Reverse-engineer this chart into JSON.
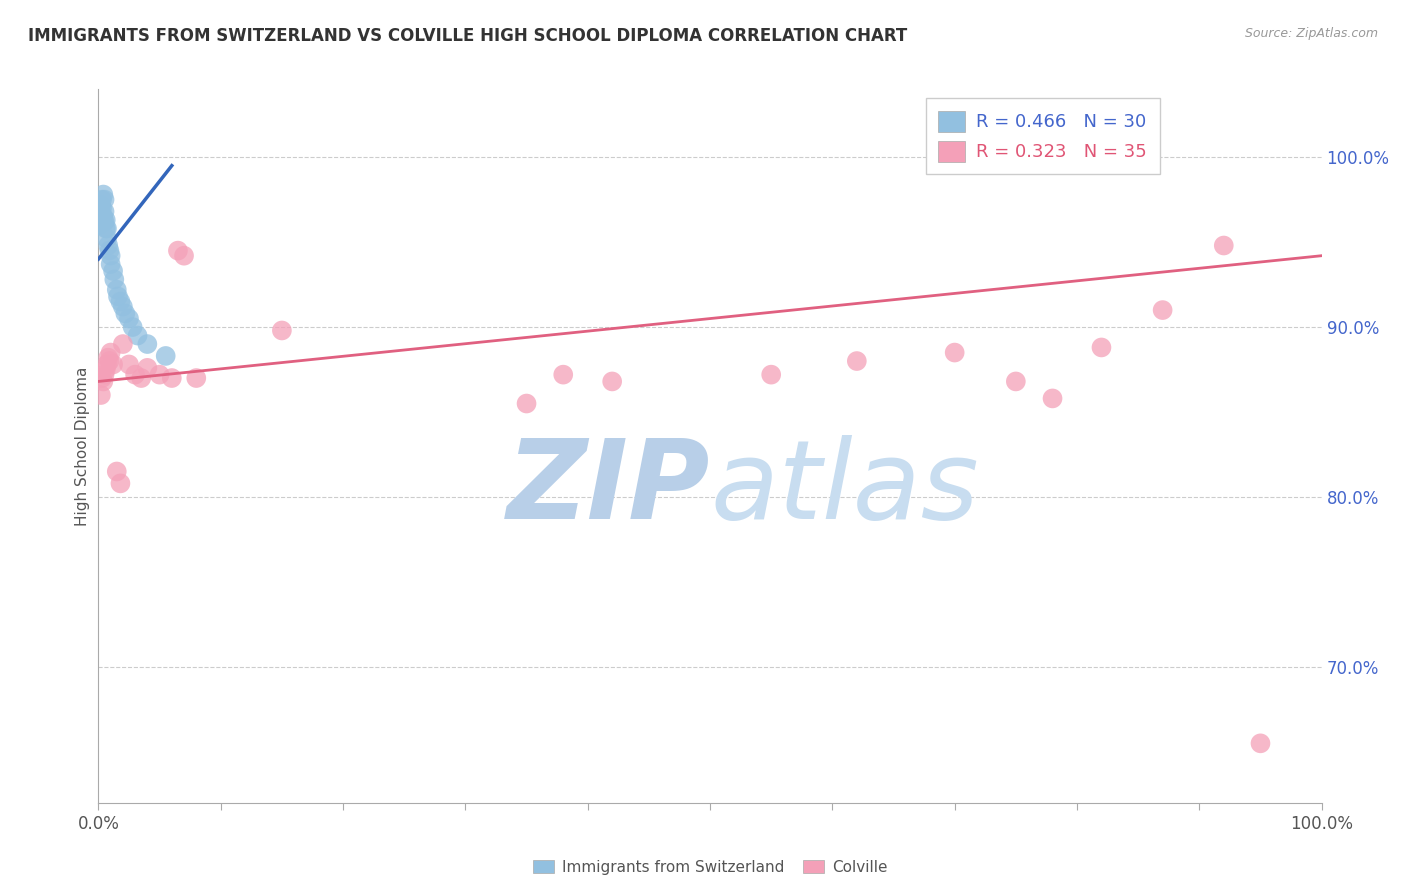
{
  "title": "IMMIGRANTS FROM SWITZERLAND VS COLVILLE HIGH SCHOOL DIPLOMA CORRELATION CHART",
  "source": "Source: ZipAtlas.com",
  "ylabel": "High School Diploma",
  "ytick_labels": [
    "100.0%",
    "90.0%",
    "80.0%",
    "70.0%"
  ],
  "ytick_values": [
    1.0,
    0.9,
    0.8,
    0.7
  ],
  "legend_blue_r": "R = 0.466",
  "legend_blue_n": "N = 30",
  "legend_pink_r": "R = 0.323",
  "legend_pink_n": "N = 35",
  "blue_color": "#92c0e0",
  "pink_color": "#f4a0b8",
  "blue_line_color": "#3366bb",
  "pink_line_color": "#e06080",
  "watermark_zip_color": "#b8cfe8",
  "watermark_atlas_color": "#c8ddf0",
  "background_color": "#ffffff",
  "blue_scatter_x": [
    0.001,
    0.002,
    0.002,
    0.003,
    0.003,
    0.004,
    0.004,
    0.005,
    0.005,
    0.005,
    0.006,
    0.006,
    0.007,
    0.007,
    0.008,
    0.009,
    0.01,
    0.01,
    0.012,
    0.013,
    0.015,
    0.016,
    0.018,
    0.02,
    0.022,
    0.025,
    0.028,
    0.032,
    0.04,
    0.055
  ],
  "blue_scatter_y": [
    0.96,
    0.972,
    0.968,
    0.975,
    0.97,
    0.978,
    0.965,
    0.975,
    0.968,
    0.962,
    0.963,
    0.958,
    0.958,
    0.952,
    0.948,
    0.945,
    0.942,
    0.937,
    0.933,
    0.928,
    0.922,
    0.918,
    0.915,
    0.912,
    0.908,
    0.905,
    0.9,
    0.895,
    0.89,
    0.883
  ],
  "pink_scatter_x": [
    0.002,
    0.003,
    0.004,
    0.005,
    0.006,
    0.007,
    0.008,
    0.009,
    0.01,
    0.012,
    0.015,
    0.018,
    0.02,
    0.025,
    0.03,
    0.035,
    0.04,
    0.05,
    0.06,
    0.065,
    0.07,
    0.08,
    0.15,
    0.35,
    0.38,
    0.42,
    0.55,
    0.62,
    0.7,
    0.75,
    0.78,
    0.82,
    0.87,
    0.92,
    0.95
  ],
  "pink_scatter_y": [
    0.86,
    0.87,
    0.868,
    0.872,
    0.875,
    0.878,
    0.882,
    0.88,
    0.885,
    0.878,
    0.815,
    0.808,
    0.89,
    0.878,
    0.872,
    0.87,
    0.876,
    0.872,
    0.87,
    0.945,
    0.942,
    0.87,
    0.898,
    0.855,
    0.872,
    0.868,
    0.872,
    0.88,
    0.885,
    0.868,
    0.858,
    0.888,
    0.91,
    0.948,
    0.655
  ],
  "blue_trendline_x": [
    0.0,
    0.06
  ],
  "blue_trendline_y": [
    0.94,
    0.995
  ],
  "pink_trendline_x": [
    0.0,
    1.0
  ],
  "pink_trendline_y": [
    0.868,
    0.942
  ],
  "xlim": [
    0.0,
    1.0
  ],
  "ylim": [
    0.62,
    1.04
  ],
  "xtick_positions": [
    0.0,
    0.1,
    0.2,
    0.3,
    0.4,
    0.5,
    0.6,
    0.7,
    0.8,
    0.9,
    1.0
  ]
}
